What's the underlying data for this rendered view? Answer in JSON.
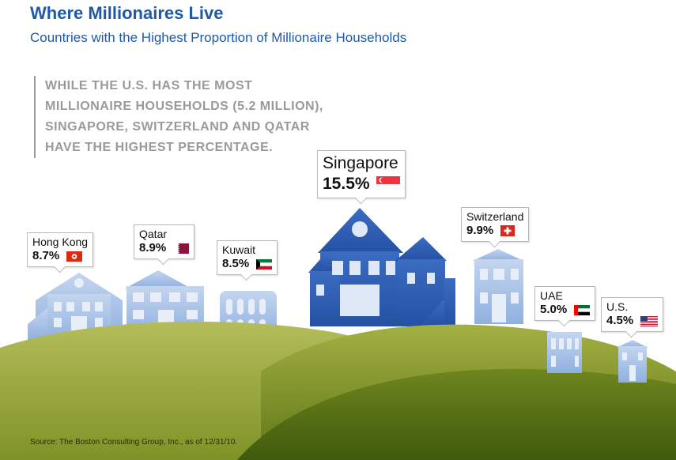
{
  "title": "Where Millionaires Live",
  "subtitle": "Countries with the Highest Proportion of Millionaire Households",
  "callout": [
    "WHILE THE U.S. HAS THE MOST",
    "MILLIONAIRE HOUSEHOLDS (5.2 MILLION),",
    "SINGAPORE, SWITZERLAND AND QATAR",
    "HAVE THE HIGHEST PERCENTAGE."
  ],
  "source": "Source: The Boston Consulting Group, Inc., as of 12/31/10.",
  "colors": {
    "title": "#1f5aa6",
    "house_dark": "#2f5fb4",
    "house_light": "#a9c2e6",
    "hill": "#9aa93a",
    "hill_dark": "#5e7518",
    "callout_text": "#9a9a9a"
  },
  "chart_data": {
    "type": "bar",
    "categories": [
      "Hong Kong",
      "Qatar",
      "Kuwait",
      "Singapore",
      "Switzerland",
      "UAE",
      "U.S."
    ],
    "values": [
      8.7,
      8.9,
      8.5,
      15.5,
      9.9,
      5.0,
      4.5
    ],
    "value_labels": [
      "8.7%",
      "8.9%",
      "8.5%",
      "15.5%",
      "9.9%",
      "5.0%",
      "4.5%"
    ],
    "flags": [
      "hong-kong-flag",
      "qatar-flag",
      "kuwait-flag",
      "singapore-flag",
      "switzerland-flag",
      "uae-flag",
      "us-flag"
    ],
    "title": "Where Millionaires Live",
    "subtitle": "Countries with the Highest Proportion of Millionaire Households"
  }
}
